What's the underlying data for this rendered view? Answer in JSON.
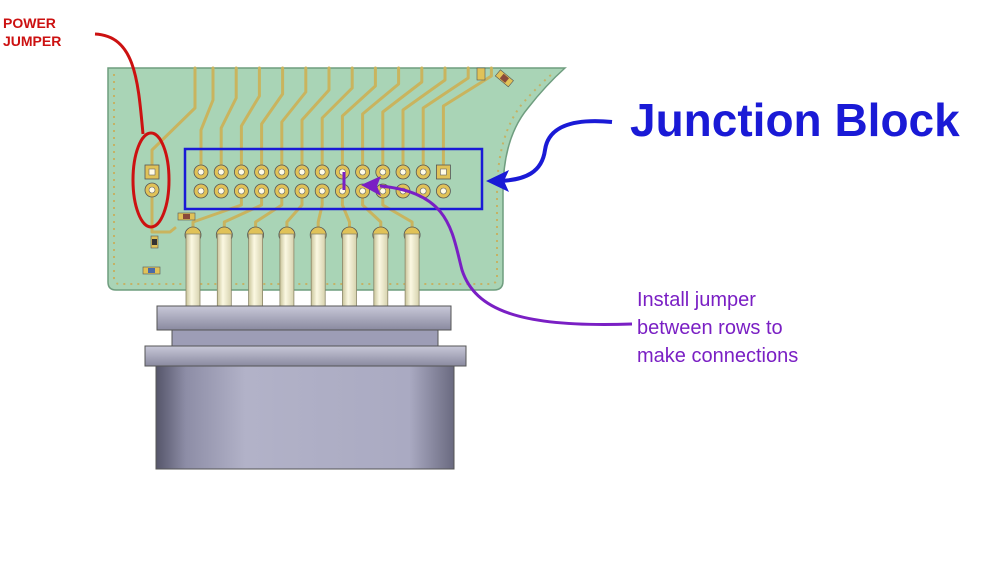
{
  "labels": {
    "power_jumper": [
      "POWER",
      "JUMPER"
    ],
    "junction_block": "Junction Block",
    "install_note": [
      "Install jumper",
      "between rows to",
      "make connections"
    ]
  },
  "colors": {
    "power_annotation": "#cc1111",
    "junction_annotation": "#1a1ad6",
    "install_annotation": "#7a1fc4",
    "pcb": "#a9d4b6",
    "pad": "#e0c258",
    "connector_body": "#a8a8c0"
  },
  "header": {
    "columns": 13,
    "rows": 2
  },
  "connector": {
    "pins": 8
  }
}
